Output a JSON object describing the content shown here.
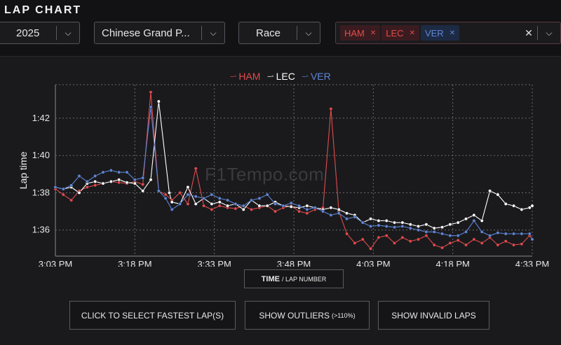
{
  "header": {
    "title": "LAP CHART"
  },
  "filters": {
    "year": {
      "value": "2025"
    },
    "event": {
      "value": "Chinese Grand P..."
    },
    "session": {
      "value": "Race"
    },
    "drivers": [
      {
        "label": "HAM",
        "color": "#e24b4b"
      },
      {
        "label": "LEC",
        "color": "#e24b4b"
      },
      {
        "label": "VER",
        "color": "#5f86d6"
      }
    ]
  },
  "legend": [
    {
      "label": "HAM",
      "color": "#e24b4b"
    },
    {
      "label": "LEC",
      "color": "#ffffff"
    },
    {
      "label": "VER",
      "color": "#5f86d6"
    }
  ],
  "watermark": "F1Tempo.com",
  "controls": {
    "axis_toggle_bold": "TIME",
    "axis_toggle_rest": "/ LAP NUMBER",
    "fastest": "CLICK TO SELECT FASTEST LAP(S)",
    "outliers": "SHOW OUTLIERS",
    "outliers_note": "(>110%)",
    "invalid": "SHOW INVALID LAPS"
  },
  "chart_data": {
    "type": "line",
    "xlabel": "",
    "ylabel": "Lap time",
    "x_ticks": [
      "3:03 PM",
      "3:18 PM",
      "3:33 PM",
      "3:48 PM",
      "4:03 PM",
      "4:18 PM",
      "4:33 PM"
    ],
    "x_range_min": [
      0,
      90
    ],
    "y_ticks": [
      "1:36",
      "1:38",
      "1:40",
      "1:42"
    ],
    "y_ticks_s": [
      96,
      98,
      100,
      102
    ],
    "ylim_s": [
      94.6,
      103.8
    ],
    "grid": true,
    "series": [
      {
        "name": "HAM",
        "color": "#e24b4b",
        "x": [
          0,
          1.5,
          3,
          4.5,
          6,
          7.5,
          9,
          10.5,
          12,
          13.5,
          15,
          16.5,
          18,
          19.5,
          20.8,
          22,
          23.5,
          25,
          26.5,
          28,
          29.5,
          31,
          32.5,
          34,
          35.5,
          37,
          38.5,
          40,
          41.5,
          43,
          44.5,
          46,
          47.5,
          49,
          50.5,
          52,
          53.5,
          55,
          56.5,
          58,
          59.5,
          61,
          62.5,
          64,
          65.5,
          67,
          68.5,
          70,
          71.5,
          73,
          74.5,
          76,
          77.5,
          79,
          80.5,
          82,
          83.5,
          85,
          86.5,
          88,
          89.5,
          90
        ],
        "y": [
          98.2,
          97.9,
          97.6,
          98.1,
          98.3,
          98.4,
          98.5,
          98.6,
          98.55,
          98.5,
          98.6,
          98.45,
          103.4,
          98.1,
          97.9,
          97.6,
          98.0,
          97.4,
          99.3,
          97.3,
          97.1,
          97.3,
          97.2,
          97.15,
          97.3,
          97.1,
          97.2,
          97.3,
          97.0,
          97.2,
          97.3,
          97.0,
          96.9,
          97.1,
          97.2,
          102.5,
          97.0,
          95.8,
          95.3,
          95.5,
          95.0,
          95.6,
          95.7,
          95.3,
          95.6,
          95.4,
          95.5,
          95.7,
          95.2,
          95.05,
          95.3,
          95.45,
          95.2,
          95.5,
          95.3,
          95.6,
          95.2,
          95.4,
          95.2,
          95.25,
          95.7,
          95.5
        ]
      },
      {
        "name": "LEC",
        "color": "#ffffff",
        "x": [
          0,
          1.5,
          3,
          4.5,
          6,
          7.5,
          9,
          10.5,
          12,
          13.5,
          15,
          16.5,
          18,
          19.5,
          21.5,
          22,
          23.5,
          25,
          26.5,
          28,
          29.5,
          31,
          32.5,
          34,
          35.5,
          37,
          38.5,
          40,
          41.5,
          43,
          44.5,
          46,
          47.5,
          49,
          50.5,
          52,
          53.5,
          55,
          56.5,
          58,
          59.5,
          61,
          62.5,
          64,
          65.5,
          67,
          68.5,
          70,
          71.5,
          73,
          74.5,
          76,
          77.5,
          79,
          80.5,
          82,
          83.5,
          85,
          86.5,
          88,
          89.5,
          90
        ],
        "y": [
          98.3,
          98.2,
          98.3,
          98.0,
          98.5,
          98.6,
          98.5,
          98.6,
          98.7,
          98.55,
          98.5,
          98.1,
          98.7,
          102.9,
          98.0,
          97.5,
          97.4,
          98.3,
          97.4,
          97.7,
          97.4,
          97.5,
          97.3,
          97.4,
          97.1,
          97.6,
          97.3,
          97.3,
          97.5,
          97.3,
          97.25,
          97.2,
          97.3,
          97.2,
          97.1,
          97.2,
          97.1,
          96.9,
          96.8,
          96.4,
          96.6,
          96.5,
          96.5,
          96.4,
          96.4,
          96.3,
          96.2,
          96.3,
          96.1,
          96.15,
          96.3,
          96.4,
          96.6,
          96.8,
          96.5,
          98.1,
          97.9,
          97.4,
          97.3,
          97.1,
          97.2,
          97.3
        ]
      },
      {
        "name": "VER",
        "color": "#5f86d6",
        "x": [
          0,
          1.5,
          3,
          4.5,
          6,
          7.5,
          9,
          10.5,
          12,
          13.5,
          15,
          16.5,
          18,
          19.5,
          20.8,
          22,
          23.5,
          25,
          26.5,
          28,
          29.5,
          31,
          32.5,
          34,
          35.5,
          37,
          38.5,
          40,
          41.5,
          43,
          44.5,
          46,
          47.5,
          49,
          50.5,
          52,
          53.5,
          55,
          56.5,
          58,
          59.5,
          61,
          62.5,
          64,
          65.5,
          67,
          68.5,
          70,
          71.5,
          73,
          74.5,
          76,
          77.5,
          79,
          80.5,
          82,
          83.5,
          85,
          86.5,
          88,
          89.5,
          90
        ],
        "y": [
          98.3,
          98.2,
          98.4,
          98.9,
          98.6,
          98.9,
          99.1,
          99.2,
          99.1,
          99.1,
          98.7,
          98.8,
          102.6,
          98.1,
          97.7,
          97.1,
          97.4,
          97.9,
          97.8,
          97.7,
          97.9,
          97.7,
          97.6,
          97.4,
          97.3,
          97.6,
          97.7,
          97.9,
          97.4,
          97.3,
          97.45,
          97.3,
          97.1,
          97.2,
          97.0,
          96.8,
          96.9,
          96.6,
          96.7,
          96.4,
          96.2,
          96.25,
          96.2,
          96.15,
          96.2,
          96.1,
          96.0,
          95.9,
          95.9,
          95.8,
          95.7,
          95.7,
          95.9,
          96.5,
          95.9,
          95.7,
          95.85,
          95.8,
          95.8,
          95.8,
          95.8,
          95.5
        ]
      }
    ]
  }
}
